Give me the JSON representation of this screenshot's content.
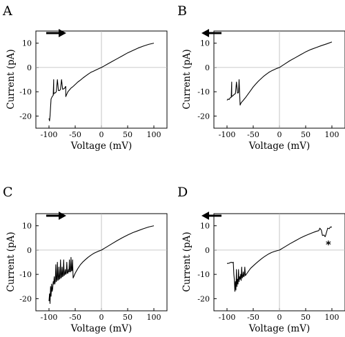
{
  "chart_data": [
    {
      "type": "line",
      "panel": "A",
      "direction": "right",
      "xlabel": "Voltage (mV)",
      "ylabel": "Current (pA)",
      "xlim": [
        -125,
        125
      ],
      "ylim": [
        -25,
        15
      ],
      "xticks": [
        -100,
        -50,
        0,
        50,
        100
      ],
      "yticks": [
        -20,
        -10,
        0,
        10
      ],
      "series": [
        {
          "x": [
            -100,
            -99,
            -98,
            -96,
            -94,
            -92,
            -91,
            -91,
            -90,
            -88,
            -86,
            -84,
            -82,
            -80,
            -78,
            -76,
            -74,
            -72,
            -70,
            -69,
            -68,
            -68,
            -66,
            -64,
            -62,
            -60,
            -58,
            -55,
            -50,
            -45,
            -40,
            -35,
            -30,
            -25,
            -20,
            -15,
            -10,
            -5,
            0,
            5,
            10,
            20,
            30,
            40,
            50,
            60,
            70,
            80,
            90,
            100
          ],
          "y": [
            -21,
            -22,
            -20,
            -13,
            -12,
            -11.5,
            -5,
            -11,
            -10.5,
            -10.5,
            -10,
            -5,
            -9.5,
            -9.5,
            -9,
            -5,
            -9,
            -8.8,
            -8.5,
            -8,
            -7.8,
            -12,
            -11,
            -10,
            -9.5,
            -9,
            -8.5,
            -8,
            -7,
            -6,
            -5.2,
            -4.3,
            -3.5,
            -2.7,
            -2,
            -1.5,
            -1,
            -0.5,
            0,
            0.6,
            1.2,
            2.4,
            3.6,
            4.8,
            6,
            7,
            8,
            8.8,
            9.5,
            10
          ]
        }
      ]
    },
    {
      "type": "line",
      "panel": "B",
      "direction": "left",
      "xlabel": "Voltage (mV)",
      "ylabel": "Current (pA)",
      "xlim": [
        -125,
        125
      ],
      "ylim": [
        -25,
        15
      ],
      "xticks": [
        -100,
        -50,
        0,
        50,
        100
      ],
      "yticks": [
        -20,
        -10,
        0,
        10
      ],
      "series": [
        {
          "x": [
            -100,
            -98,
            -96,
            -94,
            -92,
            -91,
            -91,
            -90,
            -88,
            -86,
            -84,
            -82,
            -80,
            -79,
            -78,
            -77,
            -76,
            -75,
            -73,
            -70,
            -65,
            -60,
            -55,
            -50,
            -45,
            -40,
            -35,
            -30,
            -25,
            -20,
            -15,
            -10,
            -5,
            0,
            10,
            20,
            30,
            40,
            50,
            60,
            70,
            80,
            90,
            100
          ],
          "y": [
            -13.5,
            -13,
            -13.2,
            -12.5,
            -12.3,
            -6,
            -12,
            -11.8,
            -11.5,
            -11,
            -10.8,
            -6,
            -10.5,
            -10.5,
            -10.2,
            -5,
            -10,
            -15.5,
            -14.5,
            -13.8,
            -12.5,
            -11,
            -9.5,
            -8,
            -6.8,
            -5.6,
            -4.6,
            -3.6,
            -2.8,
            -2,
            -1.4,
            -0.9,
            -0.4,
            0,
            1.4,
            2.8,
            4,
            5.2,
            6.4,
            7.4,
            8.2,
            9,
            9.7,
            10.5
          ]
        }
      ]
    },
    {
      "type": "line",
      "panel": "C",
      "direction": "right",
      "xlabel": "Voltage (mV)",
      "ylabel": "Current (pA)",
      "xlim": [
        -125,
        125
      ],
      "ylim": [
        -25,
        15
      ],
      "xticks": [
        -100,
        -50,
        0,
        50,
        100
      ],
      "yticks": [
        -20,
        -10,
        0,
        10
      ],
      "series": [
        {
          "x": [
            -100,
            -99,
            -98,
            -97,
            -96,
            -95,
            -94,
            -93,
            -92,
            -91,
            -90,
            -89,
            -88,
            -87,
            -86,
            -85,
            -84,
            -83,
            -82,
            -81,
            -80,
            -79,
            -78,
            -77,
            -76,
            -75,
            -74,
            -73,
            -72,
            -71,
            -70,
            -69,
            -68,
            -67,
            -66,
            -65,
            -64,
            -63,
            -62,
            -61,
            -60,
            -59,
            -58,
            -57,
            -56,
            -55,
            -54,
            -50,
            -45,
            -40,
            -35,
            -30,
            -25,
            -20,
            -15,
            -10,
            -5,
            0,
            10,
            20,
            30,
            40,
            50,
            60,
            70,
            80,
            90,
            100
          ],
          "y": [
            -21,
            -18,
            -22,
            -15,
            -19,
            -14,
            -17,
            -16,
            -13,
            -14,
            -11,
            -14,
            -13,
            -6,
            -13,
            -12,
            -5,
            -12.5,
            -12,
            -7,
            -12,
            -11.5,
            -4,
            -11.5,
            -11,
            -7,
            -11,
            -10.5,
            -4,
            -10.5,
            -10,
            -8,
            -10,
            -9.5,
            -5,
            -9.5,
            -9.5,
            -8,
            -9,
            -4,
            -9,
            -8.8,
            -3,
            -8.6,
            -8.4,
            -4,
            -11.5,
            -9.5,
            -7.6,
            -6,
            -4.8,
            -3.8,
            -2.9,
            -2.1,
            -1.4,
            -0.9,
            -0.4,
            0,
            1.3,
            2.6,
            3.9,
            5.1,
            6.2,
            7.2,
            8,
            8.8,
            9.5,
            10
          ]
        }
      ]
    },
    {
      "type": "line",
      "panel": "D",
      "direction": "left",
      "xlabel": "Voltage (mV)",
      "ylabel": "Current (pA)",
      "xlim": [
        -125,
        125
      ],
      "ylim": [
        -25,
        15
      ],
      "xticks": [
        -100,
        -50,
        0,
        50,
        100
      ],
      "yticks": [
        -20,
        -10,
        0,
        10
      ],
      "annotations": [
        "*"
      ],
      "series": [
        {
          "x": [
            -100,
            -96,
            -92,
            -90,
            -88,
            -87,
            -86,
            -85,
            -84,
            -83,
            -82,
            -81,
            -80,
            -79,
            -78,
            -77,
            -76,
            -75,
            -74,
            -73,
            -72,
            -71,
            -70,
            -69,
            -68,
            -67,
            -66,
            -65,
            -60,
            -55,
            -50,
            -45,
            -40,
            -35,
            -30,
            -25,
            -20,
            -15,
            -10,
            -5,
            0,
            10,
            20,
            30,
            40,
            50,
            60,
            70,
            75,
            77,
            80,
            82,
            85,
            87,
            88,
            90,
            92,
            95,
            97,
            100
          ],
          "y": [
            -5.5,
            -5.4,
            -5,
            -5.2,
            -5,
            -10,
            -12,
            -17,
            -13,
            -16.5,
            -8,
            -15,
            -12,
            -14,
            -8,
            -13,
            -11,
            -12,
            -10,
            -12.5,
            -7,
            -11.5,
            -11,
            -9,
            -11,
            -10.5,
            -7,
            -10.5,
            -9,
            -7.5,
            -6.5,
            -5.5,
            -4.6,
            -3.7,
            -2.9,
            -2.2,
            -1.5,
            -1,
            -0.6,
            -0.3,
            0,
            1.3,
            2.6,
            3.8,
            5,
            6,
            6.9,
            7.7,
            8,
            9,
            8.2,
            6,
            6.2,
            5.5,
            6,
            7.5,
            9,
            8.8,
            9.5,
            9.5
          ]
        }
      ]
    }
  ]
}
